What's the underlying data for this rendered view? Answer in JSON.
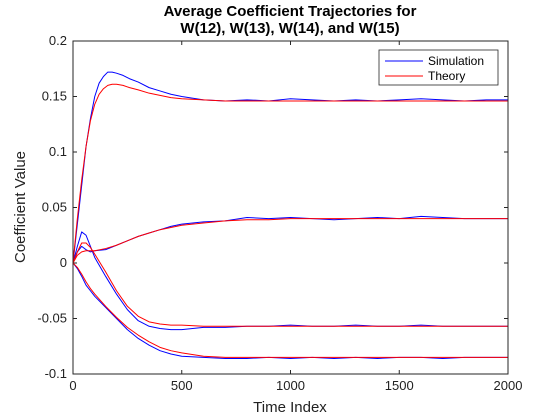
{
  "chart_data": {
    "type": "line",
    "title": [
      "Average Coefficient Trajectories for",
      "W(12), W(13), W(14), and W(15)"
    ],
    "xlabel": "Time Index",
    "ylabel": "Coefficient Value",
    "xlim": [
      0,
      2000
    ],
    "ylim": [
      -0.1,
      0.2
    ],
    "xticks": [
      0,
      500,
      1000,
      1500,
      2000
    ],
    "xtick_labels": [
      "0",
      "500",
      "1000",
      "1500",
      "2000"
    ],
    "yticks": [
      -0.1,
      -0.05,
      0,
      0.05,
      0.1,
      0.15,
      0.2
    ],
    "ytick_labels": [
      "-0.1",
      "-0.05",
      "0",
      "0.05",
      "0.1",
      "0.15",
      "0.2"
    ],
    "grid": false,
    "legend_position": "top-right",
    "series": [
      {
        "name": "Simulation",
        "color": "#0000ff",
        "curves": [
          {
            "x": [
              0,
              20,
              40,
              60,
              80,
              100,
              120,
              140,
              160,
              180,
              200,
              230,
              260,
              300,
              350,
              400,
              450,
              500,
              600,
              700,
              800,
              900,
              1000,
              1100,
              1200,
              1300,
              1400,
              1500,
              1600,
              1700,
              1800,
              1900,
              2000
            ],
            "y": [
              0.0,
              0.035,
              0.07,
              0.105,
              0.13,
              0.15,
              0.162,
              0.168,
              0.172,
              0.172,
              0.171,
              0.169,
              0.166,
              0.163,
              0.158,
              0.155,
              0.152,
              0.15,
              0.147,
              0.146,
              0.147,
              0.146,
              0.148,
              0.147,
              0.146,
              0.147,
              0.146,
              0.147,
              0.148,
              0.147,
              0.146,
              0.147,
              0.147
            ]
          },
          {
            "x": [
              0,
              20,
              40,
              60,
              80,
              100,
              150,
              200,
              250,
              300,
              350,
              400,
              450,
              500,
              600,
              700,
              800,
              900,
              1000,
              1100,
              1200,
              1300,
              1400,
              1500,
              1600,
              1700,
              1800,
              1900,
              2000
            ],
            "y": [
              0.0,
              0.01,
              0.015,
              0.012,
              0.01,
              0.011,
              0.012,
              0.016,
              0.02,
              0.024,
              0.027,
              0.03,
              0.033,
              0.035,
              0.037,
              0.038,
              0.041,
              0.04,
              0.041,
              0.04,
              0.039,
              0.04,
              0.041,
              0.04,
              0.042,
              0.041,
              0.04,
              0.04,
              0.04
            ]
          },
          {
            "x": [
              0,
              20,
              40,
              60,
              80,
              100,
              150,
              200,
              250,
              300,
              350,
              400,
              450,
              500,
              600,
              700,
              800,
              900,
              1000,
              1100,
              1200,
              1300,
              1400,
              1500,
              1600,
              1700,
              1800,
              1900,
              2000
            ],
            "y": [
              0.0,
              0.015,
              0.028,
              0.025,
              0.015,
              0.005,
              -0.012,
              -0.028,
              -0.042,
              -0.052,
              -0.057,
              -0.059,
              -0.06,
              -0.06,
              -0.058,
              -0.058,
              -0.057,
              -0.057,
              -0.056,
              -0.057,
              -0.057,
              -0.056,
              -0.057,
              -0.057,
              -0.056,
              -0.057,
              -0.057,
              -0.057,
              -0.057
            ]
          },
          {
            "x": [
              0,
              20,
              40,
              60,
              80,
              100,
              150,
              200,
              250,
              300,
              350,
              400,
              450,
              500,
              600,
              700,
              800,
              900,
              1000,
              1100,
              1200,
              1300,
              1400,
              1500,
              1600,
              1700,
              1800,
              1900,
              2000
            ],
            "y": [
              0.0,
              -0.005,
              -0.012,
              -0.02,
              -0.025,
              -0.03,
              -0.04,
              -0.05,
              -0.06,
              -0.068,
              -0.074,
              -0.079,
              -0.082,
              -0.084,
              -0.085,
              -0.086,
              -0.086,
              -0.085,
              -0.086,
              -0.085,
              -0.086,
              -0.085,
              -0.086,
              -0.085,
              -0.085,
              -0.086,
              -0.085,
              -0.085,
              -0.085
            ]
          }
        ]
      },
      {
        "name": "Theory",
        "color": "#ff0000",
        "curves": [
          {
            "x": [
              0,
              20,
              40,
              60,
              80,
              100,
              120,
              140,
              160,
              180,
              200,
              230,
              260,
              300,
              350,
              400,
              450,
              500,
              600,
              700,
              800,
              900,
              1000,
              1200,
              1400,
              1600,
              1800,
              2000
            ],
            "y": [
              0.0,
              0.04,
              0.075,
              0.105,
              0.128,
              0.143,
              0.152,
              0.157,
              0.16,
              0.161,
              0.161,
              0.16,
              0.158,
              0.156,
              0.153,
              0.151,
              0.149,
              0.148,
              0.147,
              0.146,
              0.146,
              0.146,
              0.146,
              0.146,
              0.146,
              0.146,
              0.146,
              0.146
            ]
          },
          {
            "x": [
              0,
              20,
              40,
              60,
              80,
              100,
              150,
              200,
              250,
              300,
              350,
              400,
              450,
              500,
              600,
              700,
              800,
              900,
              1000,
              1200,
              1400,
              1600,
              1800,
              2000
            ],
            "y": [
              0.0,
              0.007,
              0.01,
              0.011,
              0.011,
              0.011,
              0.013,
              0.016,
              0.02,
              0.024,
              0.027,
              0.03,
              0.032,
              0.034,
              0.036,
              0.038,
              0.039,
              0.039,
              0.04,
              0.04,
              0.04,
              0.04,
              0.04,
              0.04
            ]
          },
          {
            "x": [
              0,
              20,
              40,
              60,
              80,
              100,
              150,
              200,
              250,
              300,
              350,
              400,
              450,
              500,
              600,
              700,
              800,
              900,
              1000,
              1200,
              1400,
              1600,
              1800,
              2000
            ],
            "y": [
              0.0,
              0.01,
              0.018,
              0.018,
              0.014,
              0.008,
              -0.008,
              -0.025,
              -0.039,
              -0.048,
              -0.053,
              -0.055,
              -0.056,
              -0.056,
              -0.057,
              -0.057,
              -0.057,
              -0.057,
              -0.057,
              -0.057,
              -0.057,
              -0.057,
              -0.057,
              -0.057
            ]
          },
          {
            "x": [
              0,
              20,
              40,
              60,
              80,
              100,
              150,
              200,
              250,
              300,
              350,
              400,
              450,
              500,
              600,
              700,
              800,
              900,
              1000,
              1200,
              1400,
              1600,
              1800,
              2000
            ],
            "y": [
              0.0,
              -0.004,
              -0.01,
              -0.017,
              -0.023,
              -0.028,
              -0.039,
              -0.049,
              -0.058,
              -0.065,
              -0.071,
              -0.076,
              -0.079,
              -0.081,
              -0.084,
              -0.085,
              -0.085,
              -0.085,
              -0.085,
              -0.085,
              -0.085,
              -0.085,
              -0.085,
              -0.085
            ]
          }
        ]
      }
    ]
  }
}
